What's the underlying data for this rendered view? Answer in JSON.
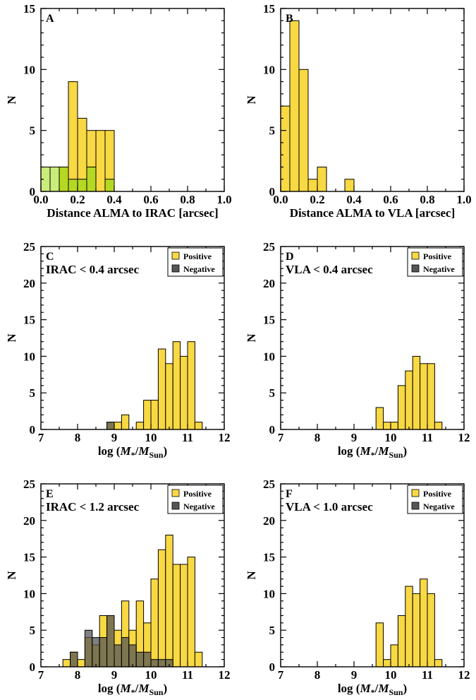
{
  "colors": {
    "positive": "#f8d843",
    "negative": "#555555",
    "negative_opacity": 0.75,
    "panelA_light": "#c9ec7a",
    "panelA_dark": "#b5d822",
    "bar_edge": "#000000"
  },
  "chart_data": [
    {
      "id": "A",
      "type": "bar",
      "panel_label": "A",
      "note": "",
      "xlabel": "Distance ALMA to IRAC [arcsec]",
      "ylabel": "N",
      "xlim": [
        0.0,
        1.0
      ],
      "ylim": [
        0,
        15
      ],
      "xticks": [
        "0.0",
        "0.2",
        "0.4",
        "0.6",
        "0.8",
        "1.0"
      ],
      "xtick_values": [
        0,
        0.2,
        0.4,
        0.6,
        0.8,
        1.0
      ],
      "yticks": [
        "0",
        "5",
        "10",
        "15"
      ],
      "ytick_values": [
        0,
        5,
        10,
        15
      ],
      "bin_width": 0.05,
      "series": [
        {
          "key": "positive",
          "bins": [
            0.0,
            0.05,
            0.1,
            0.15,
            0.2,
            0.25,
            0.3,
            0.35
          ],
          "values": [
            2,
            2,
            2,
            9,
            6,
            5,
            5,
            5
          ]
        },
        {
          "key": "overlay",
          "bins": [
            0.0,
            0.05,
            0.1,
            0.15,
            0.2,
            0.25,
            0.3,
            0.35
          ],
          "values": [
            2,
            2,
            2,
            1,
            1,
            2,
            0,
            1
          ],
          "colors": [
            "panelA_light",
            "panelA_light",
            "panelA_dark",
            "panelA_dark",
            "panelA_dark",
            "panelA_dark",
            "panelA_dark",
            "panelA_dark"
          ]
        }
      ],
      "inner_lines": [
        {
          "x": 0.05,
          "y": 1
        },
        {
          "x": 0.15,
          "y": 1
        },
        {
          "x": 0.2,
          "y": 1
        }
      ]
    },
    {
      "id": "B",
      "type": "bar",
      "panel_label": "B",
      "note": "",
      "xlabel": "Distance ALMA to VLA [arcsec]",
      "ylabel": "N",
      "xlim": [
        0.0,
        1.0
      ],
      "ylim": [
        0,
        15
      ],
      "xticks": [
        "0.0",
        "0.2",
        "0.4",
        "0.6",
        "0.8",
        "1.0"
      ],
      "xtick_values": [
        0,
        0.2,
        0.4,
        0.6,
        0.8,
        1.0
      ],
      "yticks": [
        "0",
        "5",
        "10",
        "15"
      ],
      "ytick_values": [
        0,
        5,
        10,
        15
      ],
      "bin_width": 0.05,
      "series": [
        {
          "key": "positive",
          "bins": [
            0.0,
            0.05,
            0.1,
            0.15,
            0.2,
            0.35
          ],
          "values": [
            7,
            14,
            10,
            1,
            2,
            1
          ]
        }
      ]
    },
    {
      "id": "C",
      "type": "bar",
      "panel_label": "C",
      "note": "IRAC < 0.4 arcsec",
      "xlabel": "log (M*/MSun)",
      "ylabel": "N",
      "xlim": [
        7,
        12
      ],
      "ylim": [
        0,
        25
      ],
      "xticks": [
        "7",
        "8",
        "9",
        "10",
        "11",
        "12"
      ],
      "xtick_values": [
        7,
        8,
        9,
        10,
        11,
        12
      ],
      "yticks": [
        "0",
        "5",
        "10",
        "15",
        "20",
        "25"
      ],
      "ytick_values": [
        0,
        5,
        10,
        15,
        20,
        25
      ],
      "bin_width": 0.2,
      "legend": [
        {
          "label": "Positive",
          "key": "positive"
        },
        {
          "label": "Negative",
          "key": "negative"
        }
      ],
      "series": [
        {
          "key": "positive",
          "name": "Positive",
          "bins": [
            8.8,
            9.0,
            9.2,
            9.6,
            9.8,
            10.0,
            10.2,
            10.4,
            10.6,
            10.8,
            11.0,
            11.2
          ],
          "values": [
            1,
            1,
            2,
            1,
            4,
            4,
            11,
            9,
            12,
            10,
            12,
            1
          ]
        },
        {
          "key": "negative",
          "name": "Negative",
          "bins": [
            8.8
          ],
          "values": [
            1
          ]
        }
      ]
    },
    {
      "id": "D",
      "type": "bar",
      "panel_label": "D",
      "note": "VLA < 0.4 arcsec",
      "xlabel": "log (M*/MSun)",
      "ylabel": "N",
      "xlim": [
        7,
        12
      ],
      "ylim": [
        0,
        25
      ],
      "xticks": [
        "7",
        "8",
        "9",
        "10",
        "11",
        "12"
      ],
      "xtick_values": [
        7,
        8,
        9,
        10,
        11,
        12
      ],
      "yticks": [
        "0",
        "5",
        "10",
        "15",
        "20",
        "25"
      ],
      "ytick_values": [
        0,
        5,
        10,
        15,
        20,
        25
      ],
      "bin_width": 0.2,
      "legend": [
        {
          "label": "Positive",
          "key": "positive"
        },
        {
          "label": "Negative",
          "key": "negative"
        }
      ],
      "series": [
        {
          "key": "positive",
          "name": "Positive",
          "bins": [
            9.6,
            9.8,
            10.0,
            10.2,
            10.4,
            10.6,
            10.8,
            11.0,
            11.2
          ],
          "values": [
            3,
            1,
            1,
            6,
            8,
            10,
            9,
            9,
            1
          ]
        }
      ]
    },
    {
      "id": "E",
      "type": "bar",
      "panel_label": "E",
      "note": "IRAC < 1.2 arcsec",
      "xlabel": "log (M*/MSun)",
      "ylabel": "N",
      "xlim": [
        7,
        12
      ],
      "ylim": [
        0,
        25
      ],
      "xticks": [
        "7",
        "8",
        "9",
        "10",
        "11",
        "12"
      ],
      "xtick_values": [
        7,
        8,
        9,
        10,
        11,
        12
      ],
      "yticks": [
        "0",
        "5",
        "10",
        "15",
        "20",
        "25"
      ],
      "ytick_values": [
        0,
        5,
        10,
        15,
        20,
        25
      ],
      "bin_width": 0.2,
      "legend": [
        {
          "label": "Positive",
          "key": "positive"
        },
        {
          "label": "Negative",
          "key": "negative"
        }
      ],
      "series": [
        {
          "key": "positive",
          "name": "Positive",
          "bins": [
            7.6,
            7.8,
            8.0,
            8.2,
            8.4,
            8.6,
            8.8,
            9.0,
            9.2,
            9.4,
            9.6,
            9.8,
            10.0,
            10.2,
            10.4,
            10.6,
            10.8,
            11.0,
            11.2
          ],
          "values": [
            1,
            2,
            1,
            4,
            3,
            7,
            7,
            5,
            9,
            5,
            9,
            6,
            12,
            16,
            18,
            14,
            14,
            15,
            2
          ]
        },
        {
          "key": "negative",
          "name": "Negative",
          "bins": [
            7.8,
            8.0,
            8.2,
            8.4,
            8.6,
            8.8,
            9.0,
            9.2,
            9.4,
            9.6,
            9.8,
            10.0,
            10.2,
            10.4
          ],
          "values": [
            2,
            0,
            5,
            4,
            4,
            7,
            3,
            4,
            3,
            2,
            2,
            1,
            1,
            1
          ]
        }
      ]
    },
    {
      "id": "F",
      "type": "bar",
      "panel_label": "F",
      "note": "VLA < 1.0 arcsec",
      "xlabel": "log (M*/MSun)",
      "ylabel": "N",
      "xlim": [
        7,
        12
      ],
      "ylim": [
        0,
        25
      ],
      "xticks": [
        "7",
        "8",
        "9",
        "10",
        "11",
        "12"
      ],
      "xtick_values": [
        7,
        8,
        9,
        10,
        11,
        12
      ],
      "yticks": [
        "0",
        "5",
        "10",
        "15",
        "20",
        "25"
      ],
      "ytick_values": [
        0,
        5,
        10,
        15,
        20,
        25
      ],
      "bin_width": 0.2,
      "legend": [
        {
          "label": "Positive",
          "key": "positive"
        },
        {
          "label": "Negative",
          "key": "negative"
        }
      ],
      "series": [
        {
          "key": "positive",
          "name": "Positive",
          "bins": [
            9.6,
            9.8,
            10.0,
            10.2,
            10.4,
            10.6,
            10.8,
            11.0,
            11.2
          ],
          "values": [
            6,
            1,
            3,
            7,
            11,
            10,
            12,
            10,
            1
          ]
        }
      ]
    }
  ]
}
